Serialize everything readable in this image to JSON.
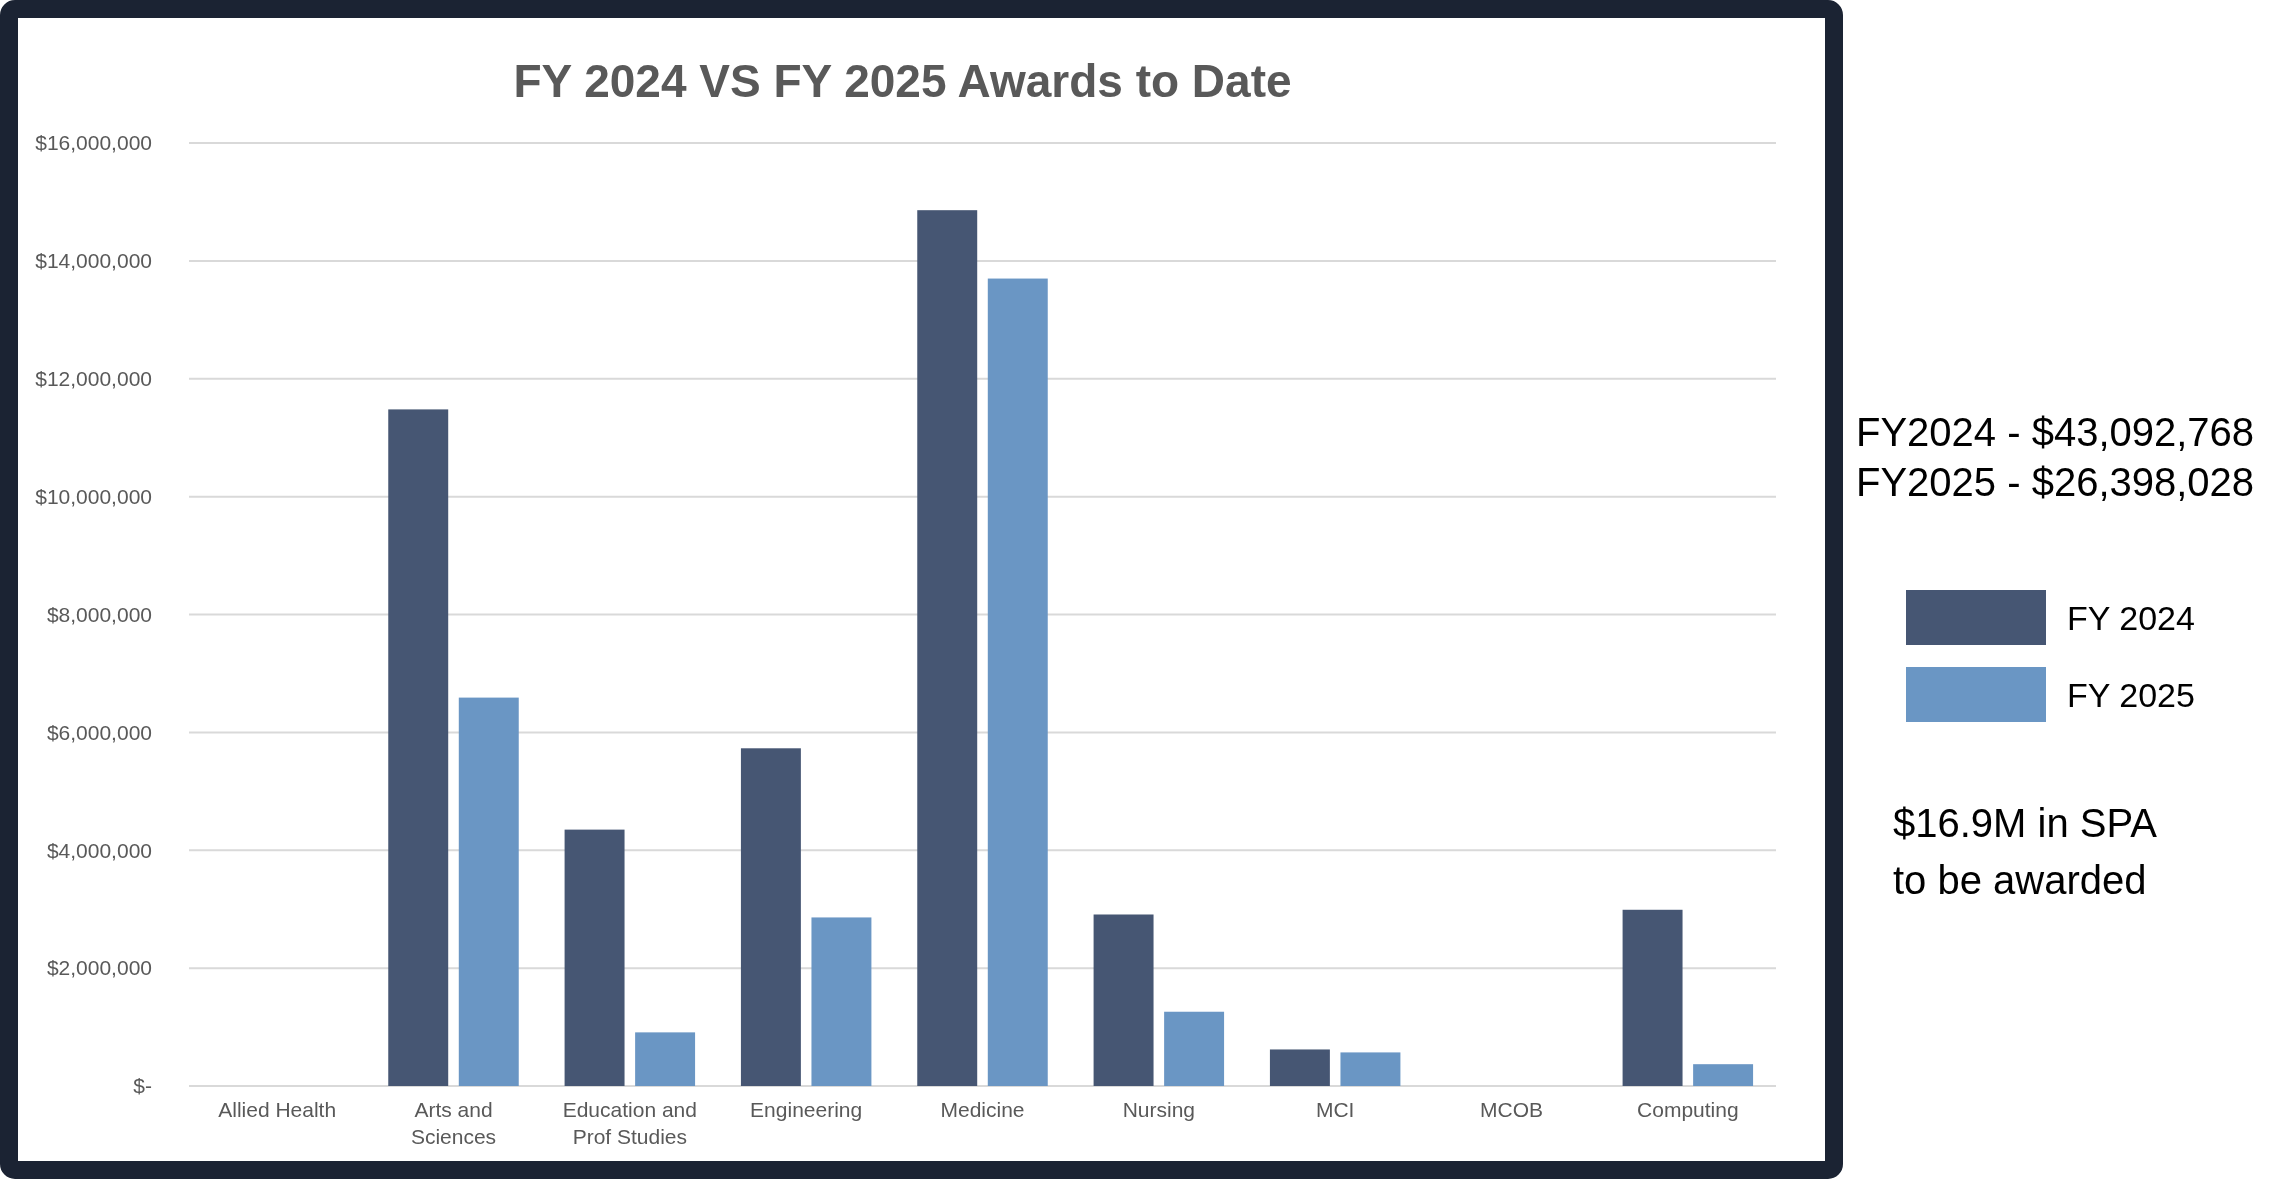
{
  "chart_data": {
    "type": "bar",
    "title": "FY 2024 VS FY 2025 Awards to Date",
    "categories": [
      "Allied Health",
      "Arts and Sciences",
      "Education and Prof Studies",
      "Engineering",
      "Medicine",
      "Nursing",
      "MCI",
      "MCOB",
      "Computing"
    ],
    "series": [
      {
        "name": "FY 2024",
        "color": "#465673",
        "values": [
          0,
          11480000,
          4350000,
          5730000,
          14860000,
          2910000,
          620000,
          0,
          2990000
        ]
      },
      {
        "name": "FY 2025",
        "color": "#6a96c4",
        "values": [
          0,
          6590000,
          910000,
          2860000,
          13700000,
          1260000,
          570000,
          0,
          370000
        ]
      }
    ],
    "ylim": [
      0,
      16000000
    ],
    "yticks": [
      {
        "value": 0,
        "label": "$-"
      },
      {
        "value": 2000000,
        "label": "$2,000,000"
      },
      {
        "value": 4000000,
        "label": "$4,000,000"
      },
      {
        "value": 6000000,
        "label": "$6,000,000"
      },
      {
        "value": 8000000,
        "label": "$8,000,000"
      },
      {
        "value": 10000000,
        "label": "$10,000,000"
      },
      {
        "value": 12000000,
        "label": "$12,000,000"
      },
      {
        "value": 14000000,
        "label": "$14,000,000"
      },
      {
        "value": 16000000,
        "label": "$16,000,000"
      }
    ],
    "grid": true,
    "legend": "right",
    "annotations": [
      "FY2024 - $43,092,768",
      "FY2025 - $26,398,028",
      "$16.9M in SPA to be awarded"
    ]
  }
}
